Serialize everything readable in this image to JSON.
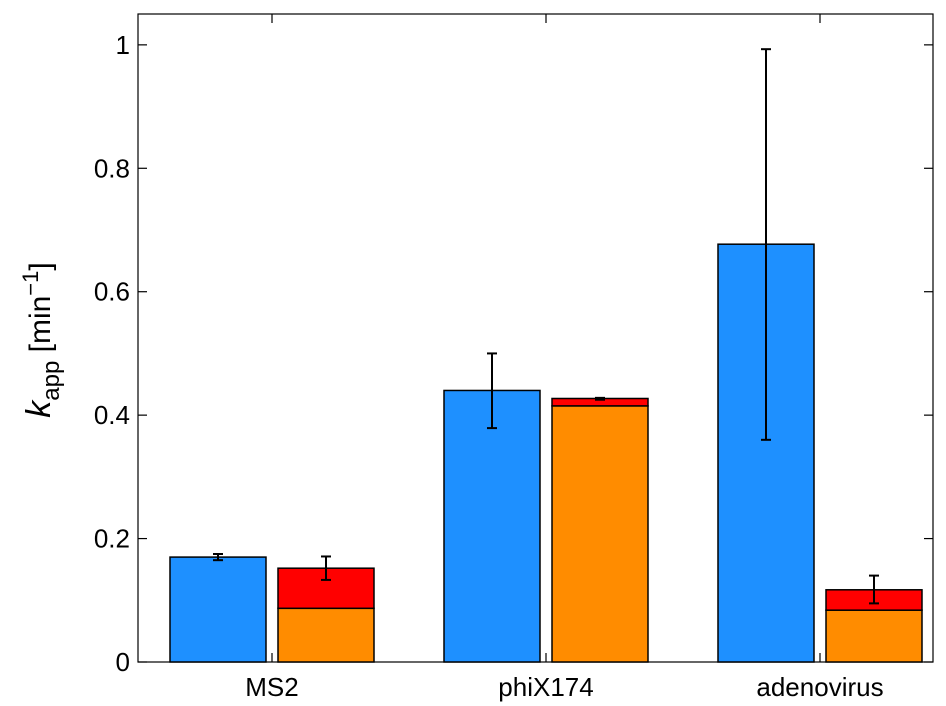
{
  "chart_data": {
    "type": "bar",
    "categories": [
      "MS2",
      "phiX174",
      "adenovirus"
    ],
    "ylabel": {
      "symbol": "k",
      "subscript": "app",
      "unit_open": " [min",
      "unit_exp": "−1",
      "unit_close": "]"
    },
    "ylim": [
      0,
      1.05
    ],
    "yticks": [
      0,
      0.2,
      0.4,
      0.6,
      0.8,
      1
    ],
    "ytick_labels": [
      "0",
      "0.2",
      "0.4",
      "0.6",
      "0.8",
      "1"
    ],
    "grid": false,
    "bars": [
      {
        "category": "MS2",
        "segments": [
          {
            "value": 0.17,
            "color": "#1e90ff"
          }
        ],
        "total": 0.17,
        "error": [
          0.165,
          0.175
        ]
      },
      {
        "category": "MS2",
        "segments": [
          {
            "value": 0.087,
            "color": "#ff8c00"
          },
          {
            "value": 0.065,
            "color": "#ff0000"
          }
        ],
        "total": 0.152,
        "error": [
          0.133,
          0.171
        ]
      },
      {
        "category": "phiX174",
        "segments": [
          {
            "value": 0.44,
            "color": "#1e90ff"
          }
        ],
        "total": 0.44,
        "error": [
          0.379,
          0.5
        ]
      },
      {
        "category": "phiX174",
        "segments": [
          {
            "value": 0.415,
            "color": "#ff8c00"
          },
          {
            "value": 0.012,
            "color": "#ff0000"
          }
        ],
        "total": 0.427,
        "error": [
          0.425,
          0.428
        ]
      },
      {
        "category": "adenovirus",
        "segments": [
          {
            "value": 0.677,
            "color": "#1e90ff"
          }
        ],
        "total": 0.677,
        "error": [
          0.36,
          0.993
        ]
      },
      {
        "category": "adenovirus",
        "segments": [
          {
            "value": 0.084,
            "color": "#ff8c00"
          },
          {
            "value": 0.033,
            "color": "#ff0000"
          }
        ],
        "total": 0.117,
        "error": [
          0.095,
          0.14
        ]
      }
    ]
  }
}
